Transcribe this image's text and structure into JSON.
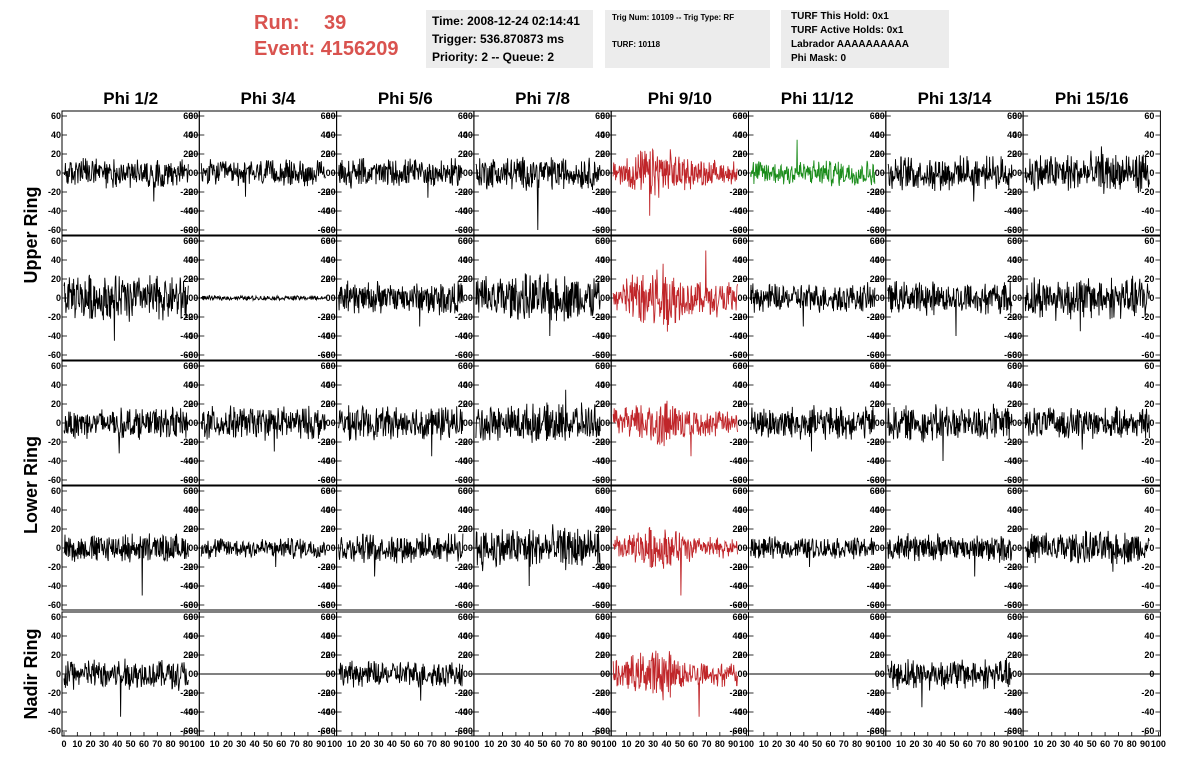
{
  "header": {
    "run_label": "Run:",
    "run_value": "39",
    "event_label": "Event:",
    "event_value": "4156209",
    "accent_color": "#d9534f"
  },
  "info_box_1": {
    "time": "Time: 2008-12-24 02:14:41",
    "trigger": "Trigger: 536.870873 ms",
    "priority": "Priority: 2 -- Queue: 2"
  },
  "info_box_2": {
    "trig": "Trig Num: 10109 -- Trig Type: RF",
    "turf": "TURF: 10118"
  },
  "info_box_3": {
    "hold": "TURF This Hold: 0x1",
    "active": "TURF Active Holds: 0x1",
    "labrador": "Labrador AAAAAAAAAA",
    "phimask": "Phi Mask: 0"
  },
  "chart_data": {
    "type": "line",
    "columns": [
      "Phi 1/2",
      "Phi 3/4",
      "Phi 5/6",
      "Phi 7/8",
      "Phi 9/10",
      "Phi 11/12",
      "Phi 13/14",
      "Phi 15/16"
    ],
    "rings": [
      "Upper Ring",
      "Lower Ring",
      "Nadir Ring"
    ],
    "ylim": [
      -60,
      60
    ],
    "xlim": [
      0,
      100
    ],
    "y_ticks": [
      60,
      40,
      20,
      0,
      -20,
      -40,
      -60
    ],
    "x_tick_labels": [
      "0",
      "10",
      "20",
      "30",
      "40",
      "50",
      "60",
      "70",
      "80",
      "90",
      "100"
    ],
    "colors": {
      "normal": "#000000",
      "triggered": "#c0262a",
      "highlight": "#1a8c1a"
    },
    "panels": [
      [
        {
          "amp": 12,
          "color": "normal",
          "spike": -30
        },
        {
          "amp": 11,
          "color": "normal",
          "spike": -25
        },
        {
          "amp": 12,
          "color": "normal",
          "spike": -26
        },
        {
          "amp": 14,
          "color": "normal",
          "spike": -60
        },
        {
          "amp": 16,
          "color": "triggered",
          "spike": -45
        },
        {
          "amp": 11,
          "color": "highlight",
          "spike": 35
        },
        {
          "amp": 14,
          "color": "normal",
          "spike": -30
        },
        {
          "amp": 17,
          "color": "normal",
          "spike": 28
        }
      ],
      [
        {
          "amp": 20,
          "color": "normal",
          "spike": -45
        },
        {
          "amp": 2,
          "color": "normal",
          "spike": 0
        },
        {
          "amp": 14,
          "color": "normal",
          "spike": -30
        },
        {
          "amp": 20,
          "color": "normal",
          "spike": -40
        },
        {
          "amp": 22,
          "color": "triggered",
          "spike": 50
        },
        {
          "amp": 12,
          "color": "normal",
          "spike": -30
        },
        {
          "amp": 14,
          "color": "normal",
          "spike": -40
        },
        {
          "amp": 18,
          "color": "normal",
          "spike": -35
        }
      ],
      [
        {
          "amp": 13,
          "color": "normal",
          "spike": -32
        },
        {
          "amp": 14,
          "color": "normal",
          "spike": -30
        },
        {
          "amp": 14,
          "color": "normal",
          "spike": -35
        },
        {
          "amp": 16,
          "color": "normal",
          "spike": 35
        },
        {
          "amp": 16,
          "color": "triggered",
          "spike": -35
        },
        {
          "amp": 14,
          "color": "normal",
          "spike": -30
        },
        {
          "amp": 15,
          "color": "normal",
          "spike": -40
        },
        {
          "amp": 13,
          "color": "normal",
          "spike": -28
        }
      ],
      [
        {
          "amp": 12,
          "color": "normal",
          "spike": -50
        },
        {
          "amp": 9,
          "color": "normal",
          "spike": -20
        },
        {
          "amp": 12,
          "color": "normal",
          "spike": -30
        },
        {
          "amp": 18,
          "color": "normal",
          "spike": -40
        },
        {
          "amp": 14,
          "color": "triggered",
          "spike": -50
        },
        {
          "amp": 9,
          "color": "normal",
          "spike": -20
        },
        {
          "amp": 12,
          "color": "normal",
          "spike": -30
        },
        {
          "amp": 14,
          "color": "normal",
          "spike": -25
        }
      ],
      [
        {
          "amp": 13,
          "color": "normal",
          "spike": -45
        },
        {
          "amp": 0,
          "color": "normal",
          "spike": 0
        },
        {
          "amp": 11,
          "color": "normal",
          "spike": -28
        },
        {
          "amp": 0,
          "color": "normal",
          "spike": 0
        },
        {
          "amp": 16,
          "color": "triggered",
          "spike": -45
        },
        {
          "amp": 0,
          "color": "normal",
          "spike": 0
        },
        {
          "amp": 13,
          "color": "normal",
          "spike": -35
        },
        {
          "amp": 0,
          "color": "normal",
          "spike": 0
        }
      ]
    ]
  }
}
